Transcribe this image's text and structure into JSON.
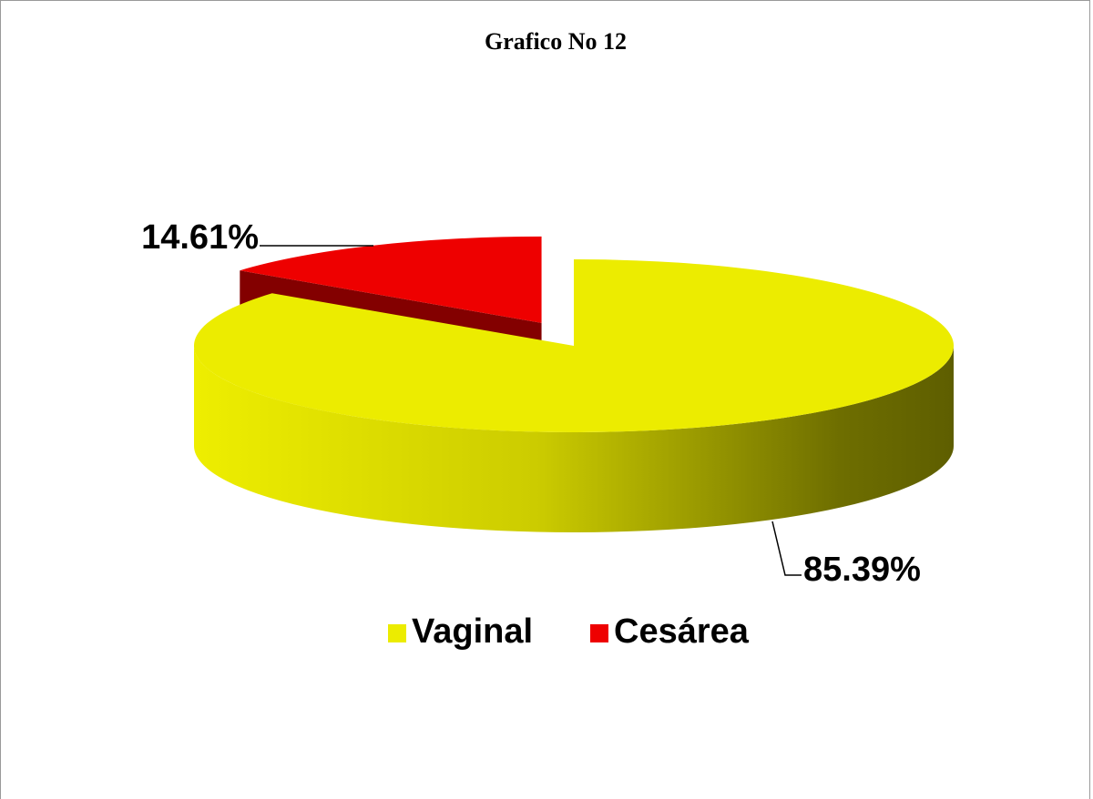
{
  "chart_data": {
    "type": "pie",
    "title": "Grafico No 12",
    "categories": [
      "Vaginal",
      "Cesárea"
    ],
    "values": [
      85.39,
      14.61
    ],
    "value_labels": [
      "85.39%",
      "14.61%"
    ],
    "colors": [
      "#ecec00",
      "#ee0000"
    ],
    "legend": "bottom"
  }
}
